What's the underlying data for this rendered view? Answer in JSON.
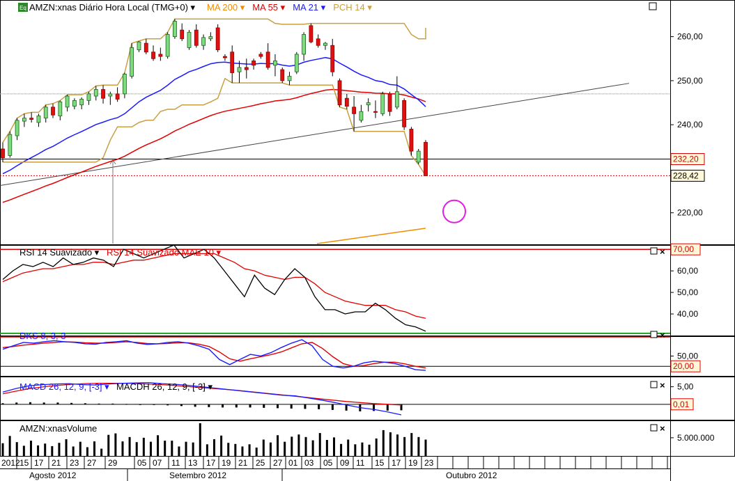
{
  "header": {
    "symbol": "AMZN:xnas Diário Hora Local (TMG+0)",
    "symbol_caret": "▾",
    "indicators": [
      {
        "label": "MA 200",
        "color": "#f08c00"
      },
      {
        "label": "MA 55",
        "color": "#e00000"
      },
      {
        "label": "MA 21",
        "color": "#1a1aff"
      },
      {
        "label": "PCH 14",
        "color": "#c8a040"
      }
    ],
    "icon_badge": "Eq"
  },
  "chart_data": [
    {
      "type": "candlestick",
      "panel": "price",
      "y_ticks": [
        "260,00",
        "250,00",
        "240,00",
        "220,00"
      ],
      "ylim": [
        213,
        268
      ],
      "price_tags": [
        {
          "value": "232,20",
          "color": "#d00000"
        },
        {
          "value": "228,42",
          "color": "#000000"
        }
      ],
      "x_labels": [
        "2012",
        "15",
        "17",
        "21",
        "23",
        "27",
        "29",
        "05",
        "07",
        "11",
        "13",
        "17",
        "19",
        "21",
        "25",
        "27",
        "01",
        "03",
        "05",
        "09",
        "11",
        "15",
        "17",
        "19",
        "23"
      ],
      "month_labels": [
        "Agosto 2012",
        "Setembro 2012",
        "Outubro 2012"
      ],
      "candles": [
        [
          234.5,
          236.0,
          231.5,
          232.5
        ],
        [
          233.0,
          238.5,
          232.5,
          237.8
        ],
        [
          237.5,
          241.5,
          236.5,
          241.0
        ],
        [
          240.8,
          242.5,
          239.5,
          241.5
        ],
        [
          241.5,
          242.8,
          240.5,
          241.2
        ],
        [
          240.5,
          242.5,
          239.5,
          242.0
        ],
        [
          241.5,
          244.5,
          240.5,
          244.0
        ],
        [
          244.0,
          244.8,
          241.5,
          242.2
        ],
        [
          242.0,
          245.5,
          241.0,
          245.2
        ],
        [
          244.0,
          246.8,
          243.0,
          246.5
        ],
        [
          244.2,
          246.0,
          243.5,
          245.5
        ],
        [
          244.5,
          246.2,
          243.5,
          245.8
        ],
        [
          245.5,
          247.5,
          244.5,
          247.0
        ],
        [
          246.5,
          248.8,
          245.5,
          248.0
        ],
        [
          248.0,
          249.0,
          244.8,
          246.0
        ],
        [
          246.5,
          247.5,
          244.5,
          247.0
        ],
        [
          247.0,
          248.5,
          245.2,
          245.8
        ],
        [
          247.0,
          251.8,
          246.0,
          251.5
        ],
        [
          251.0,
          258.5,
          250.5,
          257.5
        ],
        [
          257.0,
          259.0,
          256.5,
          258.8
        ],
        [
          258.5,
          259.5,
          256.0,
          256.5
        ],
        [
          256.5,
          258.0,
          254.5,
          255.0
        ],
        [
          256.0,
          257.5,
          254.5,
          255.5
        ],
        [
          255.5,
          261.0,
          255.0,
          260.5
        ],
        [
          260.0,
          264.0,
          259.5,
          263.5
        ],
        [
          261.5,
          263.0,
          259.0,
          259.5
        ],
        [
          257.5,
          261.5,
          257.0,
          261.0
        ],
        [
          261.5,
          262.8,
          257.5,
          258.0
        ],
        [
          258.0,
          260.5,
          257.0,
          259.8
        ],
        [
          259.5,
          261.0,
          259.0,
          260.0
        ],
        [
          262.0,
          262.8,
          256.5,
          257.0
        ],
        [
          255.5,
          256.0,
          254.5,
          255.2
        ],
        [
          256.5,
          258.0,
          249.5,
          251.8
        ],
        [
          252.0,
          254.5,
          249.5,
          253.0
        ],
        [
          253.0,
          255.0,
          250.5,
          252.5
        ],
        [
          254.5,
          255.0,
          252.5,
          253.5
        ],
        [
          256.0,
          256.5,
          255.0,
          255.5
        ],
        [
          256.5,
          258.5,
          252.5,
          253.0
        ],
        [
          253.5,
          256.0,
          251.0,
          254.5
        ],
        [
          252.5,
          253.0,
          249.5,
          250.0
        ],
        [
          250.0,
          252.0,
          249.0,
          251.0
        ],
        [
          252.0,
          256.5,
          251.5,
          256.0
        ],
        [
          256.0,
          261.0,
          254.5,
          260.5
        ],
        [
          262.5,
          263.0,
          258.5,
          258.8
        ],
        [
          259.5,
          260.5,
          257.5,
          258.0
        ],
        [
          258.0,
          258.8,
          257.0,
          258.5
        ],
        [
          258.0,
          259.5,
          251.0,
          252.0
        ],
        [
          250.0,
          250.5,
          244.0,
          244.5
        ],
        [
          246.0,
          247.0,
          243.5,
          244.2
        ],
        [
          244.0,
          246.5,
          238.5,
          242.5
        ],
        [
          241.0,
          244.5,
          240.5,
          243.0
        ],
        [
          244.5,
          246.0,
          243.0,
          245.0
        ],
        [
          243.0,
          245.5,
          241.5,
          242.8
        ],
        [
          242.5,
          247.5,
          242.0,
          247.0
        ],
        [
          247.0,
          247.5,
          242.0,
          243.0
        ],
        [
          244.0,
          251.0,
          243.5,
          247.5
        ],
        [
          245.5,
          246.0,
          238.8,
          239.5
        ],
        [
          239.0,
          239.5,
          233.0,
          234.0
        ],
        [
          231.5,
          234.5,
          231.0,
          234.0
        ],
        [
          236.0,
          236.5,
          228.4,
          228.42
        ]
      ],
      "ma200_range": [
        213,
        216.5
      ],
      "ma55_range": [
        222,
        247.8
      ],
      "ma21_range": [
        228.5,
        247.5
      ]
    },
    {
      "type": "line",
      "panel": "rsi",
      "series": [
        {
          "name": "RSI 14 Suavizado",
          "color": "#000000"
        },
        {
          "name": "RSI 14 Suavizado MAE 10",
          "color": "#e00000"
        }
      ],
      "y_ticks": [
        "70,00",
        "60,00",
        "50,00",
        "40,00"
      ],
      "ylim": [
        30,
        72
      ],
      "rsi": [
        56,
        60,
        63,
        62,
        64,
        62,
        66,
        63,
        64,
        66,
        65,
        62,
        70,
        68,
        66,
        68,
        70,
        72,
        66,
        68,
        70,
        66,
        60,
        54,
        48,
        58,
        52,
        49,
        56,
        61,
        57,
        48,
        42,
        42,
        40,
        41,
        41,
        45,
        42,
        38,
        35,
        34,
        32
      ],
      "rsi_ma": [
        55,
        57,
        59,
        60,
        61,
        61,
        62,
        63,
        63,
        64,
        64,
        63,
        64,
        65,
        65,
        66,
        67,
        68,
        68,
        68,
        68,
        68,
        66,
        64,
        61,
        60,
        58,
        57,
        56,
        57,
        57,
        54,
        50,
        48,
        46,
        45,
        44,
        44,
        44,
        42,
        41,
        39,
        38
      ]
    },
    {
      "type": "line",
      "panel": "stochastic",
      "legend": "DKS 8, 3, 3",
      "y_ticks": [
        "50,00",
        "20,00"
      ],
      "ylim": [
        0,
        100
      ],
      "k": [
        70,
        80,
        90,
        88,
        92,
        95,
        92,
        90,
        86,
        85,
        90,
        92,
        95,
        88,
        84,
        86,
        90,
        92,
        88,
        80,
        70,
        40,
        25,
        40,
        55,
        50,
        60,
        75,
        88,
        98,
        80,
        40,
        20,
        15,
        20,
        30,
        35,
        32,
        28,
        20,
        10,
        8
      ],
      "d": [
        75,
        78,
        82,
        85,
        88,
        90,
        92,
        91,
        89,
        88,
        88,
        90,
        92,
        90,
        87,
        86,
        87,
        89,
        89,
        85,
        78,
        62,
        42,
        35,
        42,
        48,
        54,
        62,
        74,
        86,
        90,
        72,
        48,
        28,
        20,
        22,
        28,
        32,
        32,
        27,
        20,
        15
      ]
    },
    {
      "type": "line",
      "panel": "macd",
      "series": [
        {
          "name": "MACD 26, 12, 9, [-3]",
          "color": "#1a1aff"
        },
        {
          "name": "MACDH 26, 12, 9, [-3]",
          "color": "#000000"
        }
      ],
      "y_ticks": [
        "5,00",
        "0,01"
      ],
      "ylim": [
        -4,
        7.5
      ],
      "macd": [
        3.5,
        4.5,
        5.3,
        5.6,
        5.8,
        5.9,
        5.6,
        5.5,
        5.8,
        6.0,
        6.1,
        6.2,
        5.9,
        5.7,
        5.4,
        5.0,
        4.6,
        4.2,
        3.8,
        3.4,
        3.0,
        2.6,
        2.4,
        1.8,
        1.2,
        0.5,
        -0.3,
        -1.0,
        -1.5,
        -2.2,
        -3.0
      ],
      "signal": [
        3.0,
        3.8,
        4.5,
        5.0,
        5.4,
        5.7,
        5.9,
        6.0,
        6.0,
        6.0,
        5.9,
        5.7,
        5.5,
        5.2,
        4.9,
        4.6,
        4.3,
        4.0,
        3.6,
        3.2,
        2.8,
        2.4,
        2.0,
        1.6,
        1.2,
        0.8,
        0.5,
        0.2,
        0.0,
        -0.2
      ],
      "histogram": [
        0.3,
        0.5,
        0.6,
        0.5,
        0.5,
        0.4,
        0.3,
        0.2,
        0.2,
        0.1,
        0.0,
        -0.1,
        -0.3,
        -0.5,
        -0.7,
        -0.8,
        -0.9,
        -0.9,
        -0.9,
        -1.0,
        -1.1,
        -1.2,
        -1.3,
        -1.4,
        -1.6,
        -1.8,
        -2.0,
        -1.9,
        -1.8,
        -1.7
      ]
    },
    {
      "type": "bar",
      "panel": "volume",
      "legend": "AMZN:xnasVolume",
      "y_ticks": [
        "5.000.000"
      ],
      "ylim": [
        0,
        9000000
      ],
      "values": [
        3.5,
        5.5,
        3.8,
        2.8,
        4.2,
        2.9,
        3.4,
        2.7,
        3.6,
        4.6,
        2.6,
        3.9,
        2.4,
        4.0,
        2.0,
        5.8,
        6.2,
        4.0,
        5.2,
        3.8,
        5.0,
        3.9,
        5.7,
        4.2,
        4.2,
        2.6,
        3.9,
        3.7,
        9.0,
        3.2,
        4.6,
        5.6,
        3.6,
        3.3,
        2.6,
        3.2,
        2.3,
        4.5,
        3.7,
        5.7,
        3.9,
        5.3,
        5.9,
        5.2,
        4.3,
        6.3,
        4.4,
        5.1,
        3.3,
        4.5,
        3.2,
        3.7,
        3.1,
        4.8,
        7.1,
        6.5,
        5.9,
        5.2,
        6.3,
        5.2,
        4.5
      ],
      "unit": "millions"
    }
  ]
}
